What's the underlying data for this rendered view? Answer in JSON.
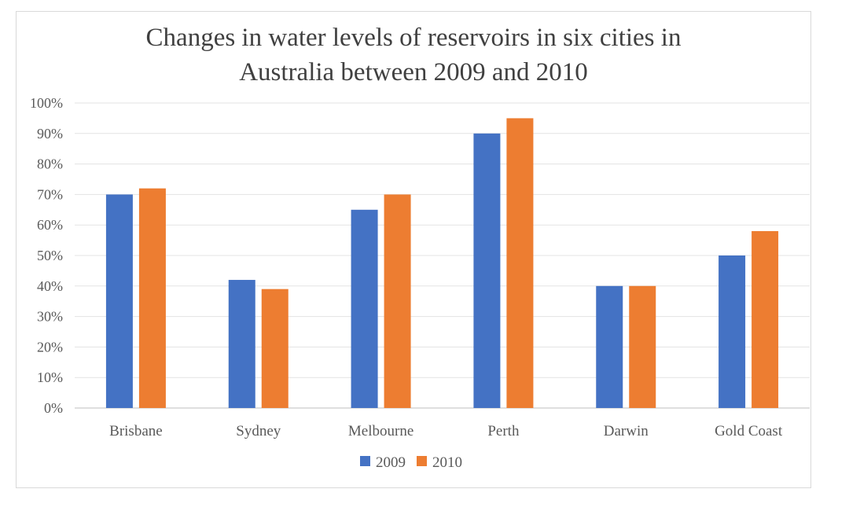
{
  "chart_data": {
    "type": "bar",
    "title_lines": [
      "Changes in water levels of reservoirs in six cities in",
      "Australia between 2009 and 2010"
    ],
    "categories": [
      "Brisbane",
      "Sydney",
      "Melbourne",
      "Perth",
      "Darwin",
      "Gold Coast"
    ],
    "series": [
      {
        "name": "2009",
        "color": "#4472c4",
        "values": [
          70,
          42,
          65,
          90,
          40,
          50
        ]
      },
      {
        "name": "2010",
        "color": "#ed7d31",
        "values": [
          72,
          39,
          70,
          95,
          40,
          58
        ]
      }
    ],
    "y_ticks": [
      "0%",
      "10%",
      "20%",
      "30%",
      "40%",
      "50%",
      "60%",
      "70%",
      "80%",
      "90%",
      "100%"
    ],
    "ylim": [
      0,
      100
    ],
    "grid": true,
    "legend_position": "bottom"
  }
}
